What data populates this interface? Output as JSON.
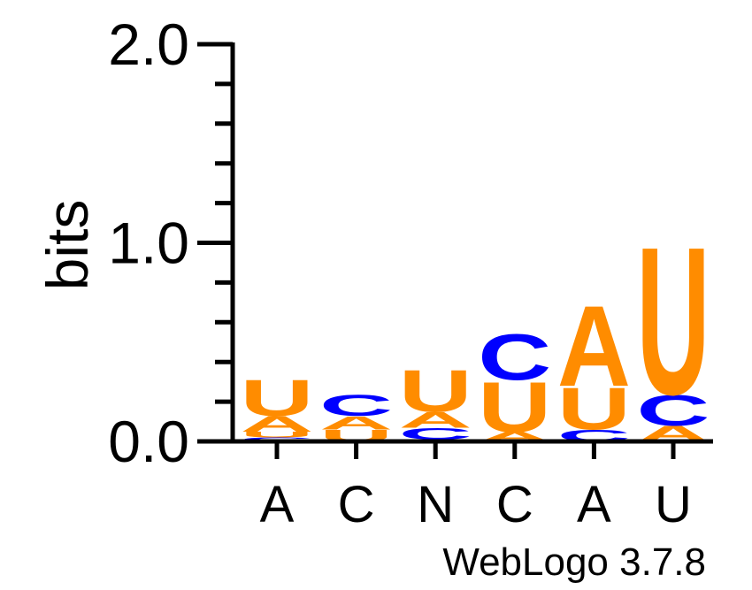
{
  "chart_data": {
    "type": "sequence-logo",
    "ylabel": "bits",
    "ylim": [
      0,
      2.0
    ],
    "ytick_labels": [
      "0.0",
      "1.0",
      "2.0"
    ],
    "categories": [
      "A",
      "C",
      "N",
      "C",
      "A",
      "U"
    ],
    "colors": {
      "A": "#ff8c00",
      "U": "#ff8c00",
      "C": "#0000ff"
    },
    "stacks": [
      {
        "position": "A",
        "letters": [
          {
            "base": "C",
            "bits": 0.02
          },
          {
            "base": "U",
            "bits": 0.03
          },
          {
            "base": "A",
            "bits": 0.08
          },
          {
            "base": "U",
            "bits": 0.19
          }
        ]
      },
      {
        "position": "C",
        "letters": [
          {
            "base": "U",
            "bits": 0.06
          },
          {
            "base": "A",
            "bits": 0.07
          },
          {
            "base": "C",
            "bits": 0.11
          }
        ]
      },
      {
        "position": "N",
        "letters": [
          {
            "base": "U",
            "bits": 0.01
          },
          {
            "base": "C",
            "bits": 0.06
          },
          {
            "base": "A",
            "bits": 0.08
          },
          {
            "base": "U",
            "bits": 0.22
          }
        ]
      },
      {
        "position": "C",
        "letters": [
          {
            "base": "A",
            "bits": 0.05
          },
          {
            "base": "U",
            "bits": 0.26
          },
          {
            "base": "C",
            "bits": 0.24
          }
        ]
      },
      {
        "position": "A",
        "letters": [
          {
            "base": "C",
            "bits": 0.06
          },
          {
            "base": "U",
            "bits": 0.22
          },
          {
            "base": "A",
            "bits": 0.42
          }
        ]
      },
      {
        "position": "U",
        "letters": [
          {
            "base": "A",
            "bits": 0.08
          },
          {
            "base": "C",
            "bits": 0.16
          },
          {
            "base": "U",
            "bits": 0.77
          }
        ]
      }
    ]
  },
  "footer": {
    "credit": "WebLogo 3.7.8"
  }
}
